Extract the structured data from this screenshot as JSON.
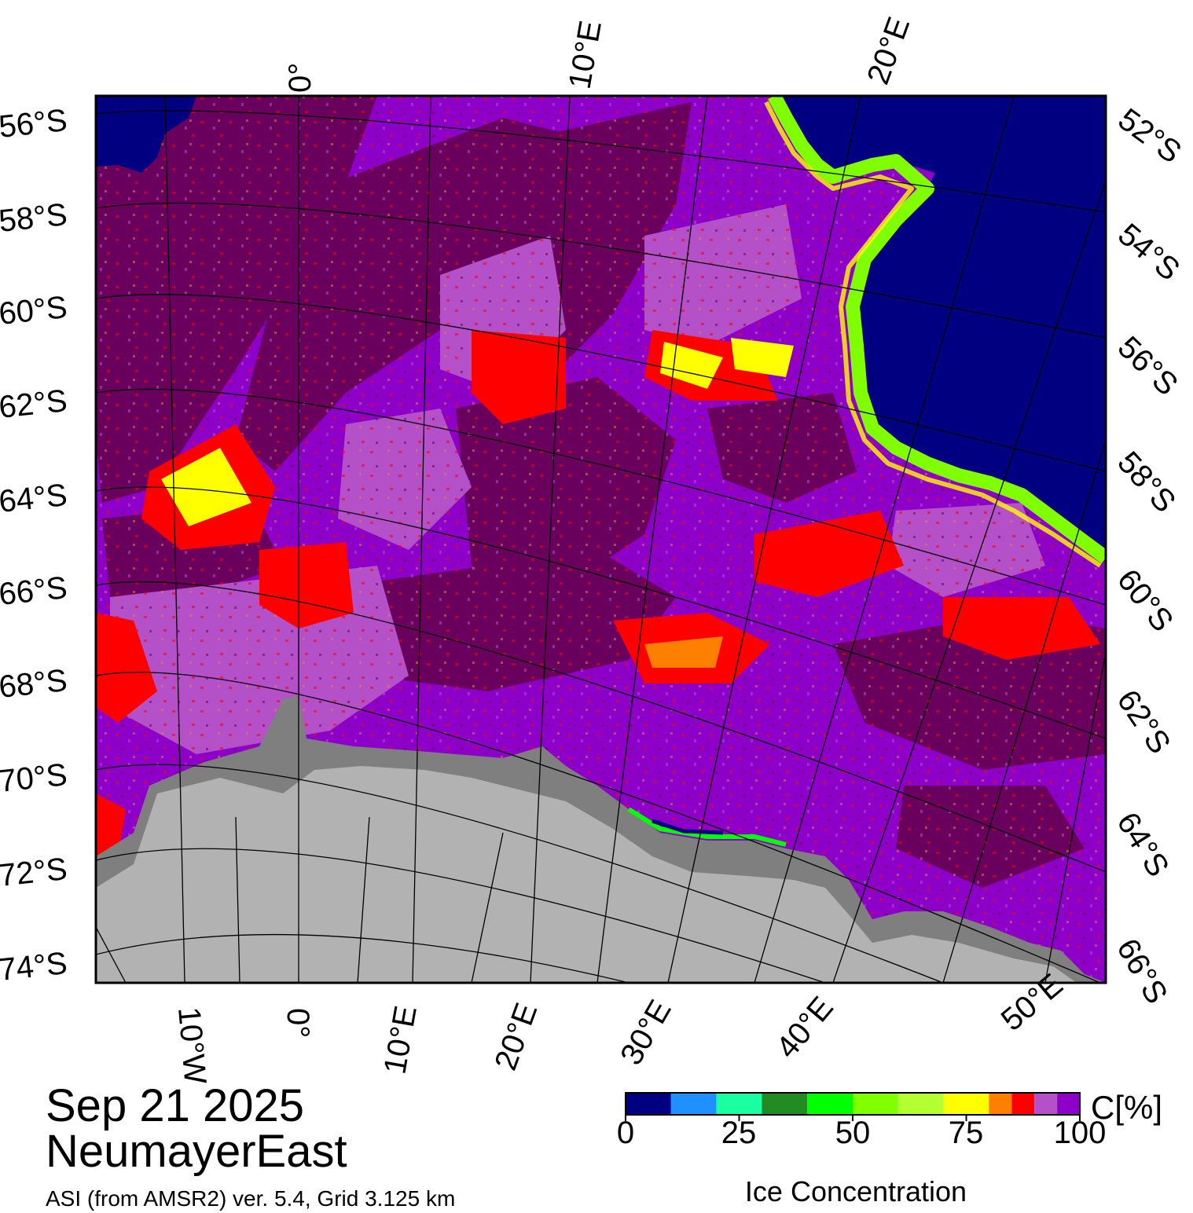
{
  "map": {
    "title_date": "Sep 21 2025",
    "region": "NeumayerEast",
    "source": "ASI (from AMSR2) ver. 5.4,  Grid 3.125 km",
    "left_lat_labels": [
      "56°S",
      "58°S",
      "60°S",
      "62°S",
      "64°S",
      "66°S",
      "68°S",
      "70°S",
      "72°S",
      "74°S"
    ],
    "right_lat_labels": [
      "52°S",
      "54°S",
      "56°S",
      "58°S",
      "60°S",
      "62°S",
      "64°S",
      "66°S"
    ],
    "top_lon_labels": [
      "0°",
      "10°E",
      "20°E"
    ],
    "bottom_lon_labels": [
      "10°W",
      "0°",
      "10°E",
      "20°E",
      "30°E",
      "40°E",
      "50°E"
    ],
    "colors": {
      "open_water": "#000080",
      "ice_100": "#6a005e",
      "ice_95": "#8c00c8",
      "ice_90": "#b450c8",
      "ice_85": "#ff0000",
      "ice_80": "#ff7f00",
      "ice_75": "#ffff00",
      "ice_60": "#7fff00",
      "land_ice": "#b2b2b2",
      "ice_shelf": "#7f7f7f"
    }
  },
  "colorbar": {
    "unit": "C[%]",
    "title": "Ice Concentration",
    "ticks": [
      "0",
      "25",
      "50",
      "75",
      "100"
    ],
    "colors": [
      "#000080",
      "#1e90ff",
      "#1affa0",
      "#228b22",
      "#00ff00",
      "#7fff00",
      "#b4ff32",
      "#ffff00",
      "#ff7f00",
      "#ff0000",
      "#b450c8",
      "#8c00c8"
    ]
  }
}
